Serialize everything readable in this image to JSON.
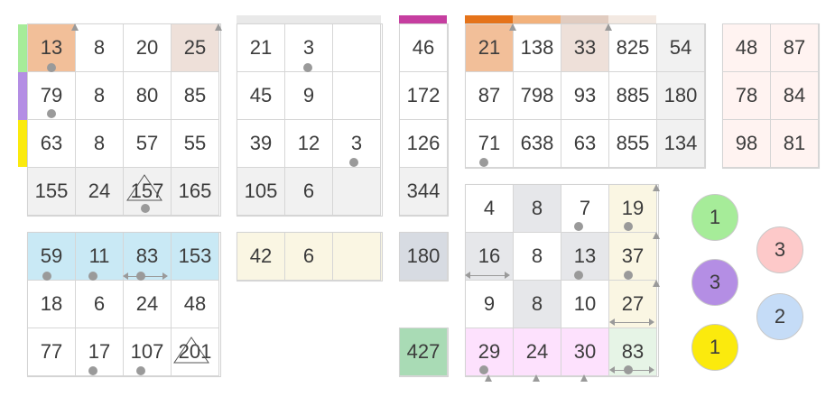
{
  "colors": {
    "green": "#a6ec99",
    "purple": "#b48ee4",
    "yellow": "#fbea0d",
    "orange": "#f2bf99",
    "tan": "#eee0d9",
    "grey": "#f1f1f1",
    "blue": "#c9e9f5",
    "cream": "#faf6e3",
    "pink": "#fde1fd",
    "mint": "#e6f4e6",
    "slate": "#d7dbe2",
    "magenta": "#c63ea0",
    "darkgreen": "#a9dbb5",
    "peach": "#fff3f1",
    "light": "#e9e9e9"
  },
  "grid_a": {
    "rows": [
      [
        "13",
        "8",
        "20",
        "25"
      ],
      [
        "79",
        "8",
        "80",
        "85"
      ],
      [
        "63",
        "8",
        "57",
        "55"
      ],
      [
        "155",
        "24",
        "157",
        "165"
      ]
    ]
  },
  "grid_b": {
    "rows": [
      [
        "21",
        "3",
        ""
      ],
      [
        "45",
        "9",
        ""
      ],
      [
        "39",
        "12",
        "3"
      ],
      [
        "105",
        "6",
        ""
      ]
    ]
  },
  "grid_c": {
    "rows": [
      [
        "46"
      ],
      [
        "172"
      ],
      [
        "126"
      ],
      [
        "344"
      ]
    ]
  },
  "grid_d": {
    "rows": [
      [
        "21",
        "138",
        "33",
        "825",
        "54"
      ],
      [
        "87",
        "798",
        "93",
        "885",
        "180"
      ],
      [
        "71",
        "638",
        "63",
        "855",
        "134"
      ]
    ]
  },
  "grid_e": {
    "rows": [
      [
        "48",
        "87"
      ],
      [
        "78",
        "84"
      ],
      [
        "98",
        "81"
      ]
    ]
  },
  "grid_f": {
    "rows": [
      [
        "59",
        "11",
        "83",
        "153"
      ],
      [
        "18",
        "6",
        "24",
        "48"
      ],
      [
        "77",
        "17",
        "107",
        "201"
      ]
    ]
  },
  "grid_g": {
    "rows": [
      [
        "42",
        "6",
        ""
      ]
    ]
  },
  "grid_h": {
    "value": "180"
  },
  "grid_i": {
    "value": "427"
  },
  "grid_j": {
    "rows": [
      [
        "4",
        "8",
        "7",
        "19"
      ],
      [
        "16",
        "8",
        "13",
        "37"
      ],
      [
        "9",
        "8",
        "10",
        "27"
      ],
      [
        "29",
        "24",
        "30",
        "83"
      ]
    ]
  },
  "circles": [
    {
      "label": "1",
      "color": "#a6ec99"
    },
    {
      "label": "3",
      "color": "#b48ee4"
    },
    {
      "label": "1",
      "color": "#fbea0d"
    },
    {
      "label": "3",
      "color": "#fdc9c9"
    },
    {
      "label": "2",
      "color": "#c5dcf7"
    }
  ]
}
